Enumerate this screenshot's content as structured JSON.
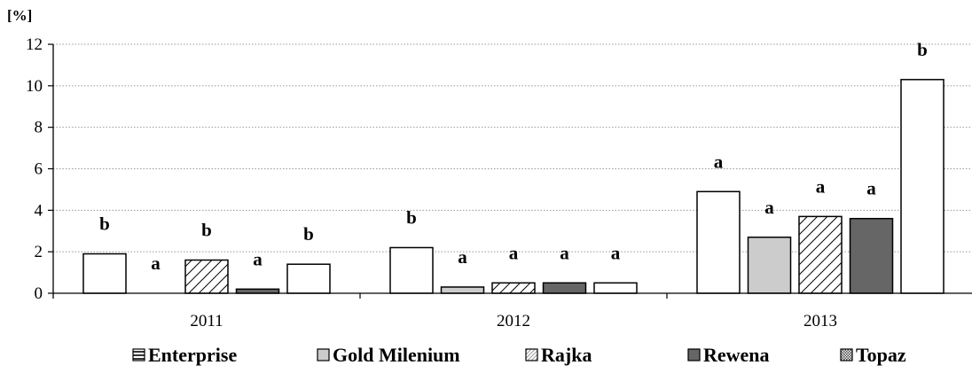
{
  "chart_data": {
    "type": "bar",
    "unit_label": "[%]",
    "categories": [
      "2011",
      "2012",
      "2013"
    ],
    "ylim": [
      0,
      12
    ],
    "yticks": [
      "0",
      "2",
      "4",
      "6",
      "8",
      "10",
      "12"
    ],
    "grid": true,
    "legend_position": "bottom",
    "series": [
      {
        "name": "Enterprise",
        "values": [
          1.9,
          2.2,
          4.9
        ],
        "significance": [
          "b",
          "b",
          "a"
        ],
        "fill": "#ffffff",
        "pattern": "none"
      },
      {
        "name": "Gold Milenium",
        "values": [
          0,
          0.3,
          2.7
        ],
        "significance": [
          "a",
          "a",
          "a"
        ],
        "fill": "#cccccc",
        "pattern": "none"
      },
      {
        "name": "Rajka",
        "values": [
          1.6,
          0.5,
          3.7
        ],
        "significance": [
          "b",
          "a",
          "a"
        ],
        "fill": "#ffffff",
        "pattern": "diagonal"
      },
      {
        "name": "Rewena",
        "values": [
          0.2,
          0.5,
          3.6
        ],
        "significance": [
          "a",
          "a",
          "a"
        ],
        "fill": "#666666",
        "pattern": "none"
      },
      {
        "name": "Topaz",
        "values": [
          1.4,
          0.5,
          10.3
        ],
        "significance": [
          "b",
          "a",
          "b"
        ],
        "fill": "#ffffff",
        "pattern": "none"
      }
    ],
    "colors": {
      "grid": "#999999",
      "axis": "#000000",
      "bar_stroke": "#000000"
    }
  }
}
